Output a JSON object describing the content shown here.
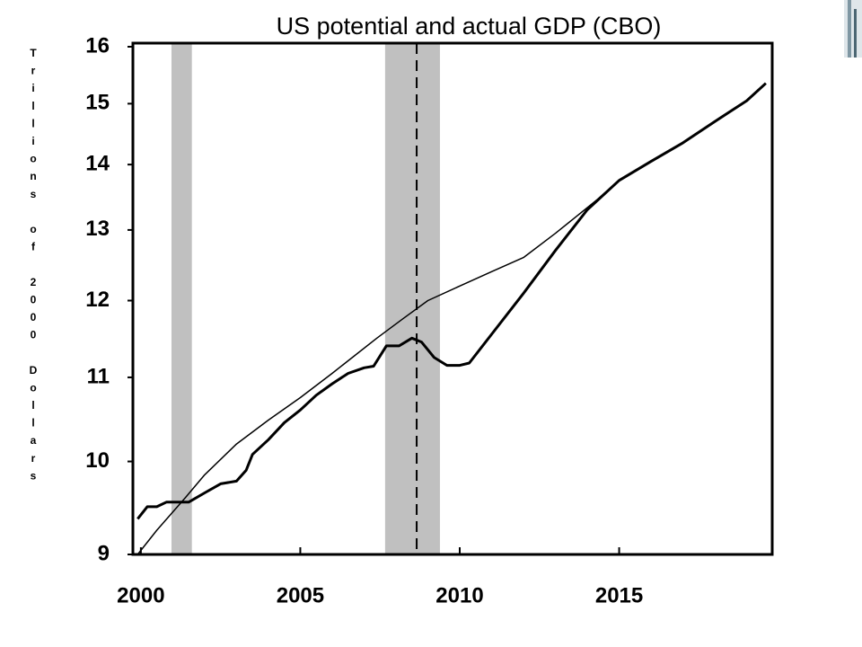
{
  "chart_data": {
    "type": "line",
    "title": "US potential and actual GDP (CBO)",
    "y_label": "Trillions of 2000 Dollars",
    "log_y": true,
    "xlim": [
      1999.75,
      2019.8
    ],
    "xticks": [
      2000,
      2005,
      2010,
      2015
    ],
    "ylim": [
      9,
      16
    ],
    "yticks": [
      9,
      10,
      11,
      12,
      13,
      14,
      15,
      16
    ],
    "recessions": [
      [
        2000.96,
        2001.6
      ],
      [
        2007.66,
        2009.38
      ]
    ],
    "recession_color": "#c0c0c0",
    "vline": 2008.65,
    "series": [
      {
        "color": "#000000",
        "width": 1.5,
        "x": [
          1999.9,
          2000.5,
          2001.4,
          2002,
          2003,
          2004,
          2005,
          2006,
          2007.4,
          2008.2,
          2009,
          2010,
          2011,
          2012,
          2013,
          2014.3,
          2015,
          2016,
          2017,
          2018,
          2019,
          2019.6
        ],
        "values": [
          9.0,
          9.25,
          9.6,
          9.85,
          10.2,
          10.48,
          10.75,
          11.05,
          11.5,
          11.75,
          12.0,
          12.2,
          12.4,
          12.6,
          12.95,
          13.45,
          13.75,
          14.05,
          14.35,
          14.7,
          15.05,
          15.35
        ]
      },
      {
        "color": "#000000",
        "width": 3,
        "x": [
          1999.9,
          2000.2,
          2000.5,
          2000.8,
          2001.2,
          2001.5,
          2002,
          2002.5,
          2003,
          2003.3,
          2003.5,
          2004,
          2004.5,
          2005,
          2005.5,
          2006,
          2006.5,
          2007,
          2007.3,
          2007.7,
          2008.1,
          2008.5,
          2008.8,
          2009.2,
          2009.6,
          2010,
          2010.3,
          2011,
          2012,
          2013,
          2014,
          2015,
          2016,
          2017,
          2018,
          2019,
          2019.6
        ],
        "values": [
          9.37,
          9.5,
          9.5,
          9.55,
          9.55,
          9.55,
          9.65,
          9.75,
          9.78,
          9.9,
          10.08,
          10.25,
          10.45,
          10.6,
          10.78,
          10.92,
          11.05,
          11.12,
          11.14,
          11.4,
          11.4,
          11.5,
          11.45,
          11.25,
          11.15,
          11.15,
          11.18,
          11.55,
          12.1,
          12.7,
          13.3,
          13.75,
          14.05,
          14.35,
          14.7,
          15.05,
          15.35
        ]
      }
    ]
  }
}
